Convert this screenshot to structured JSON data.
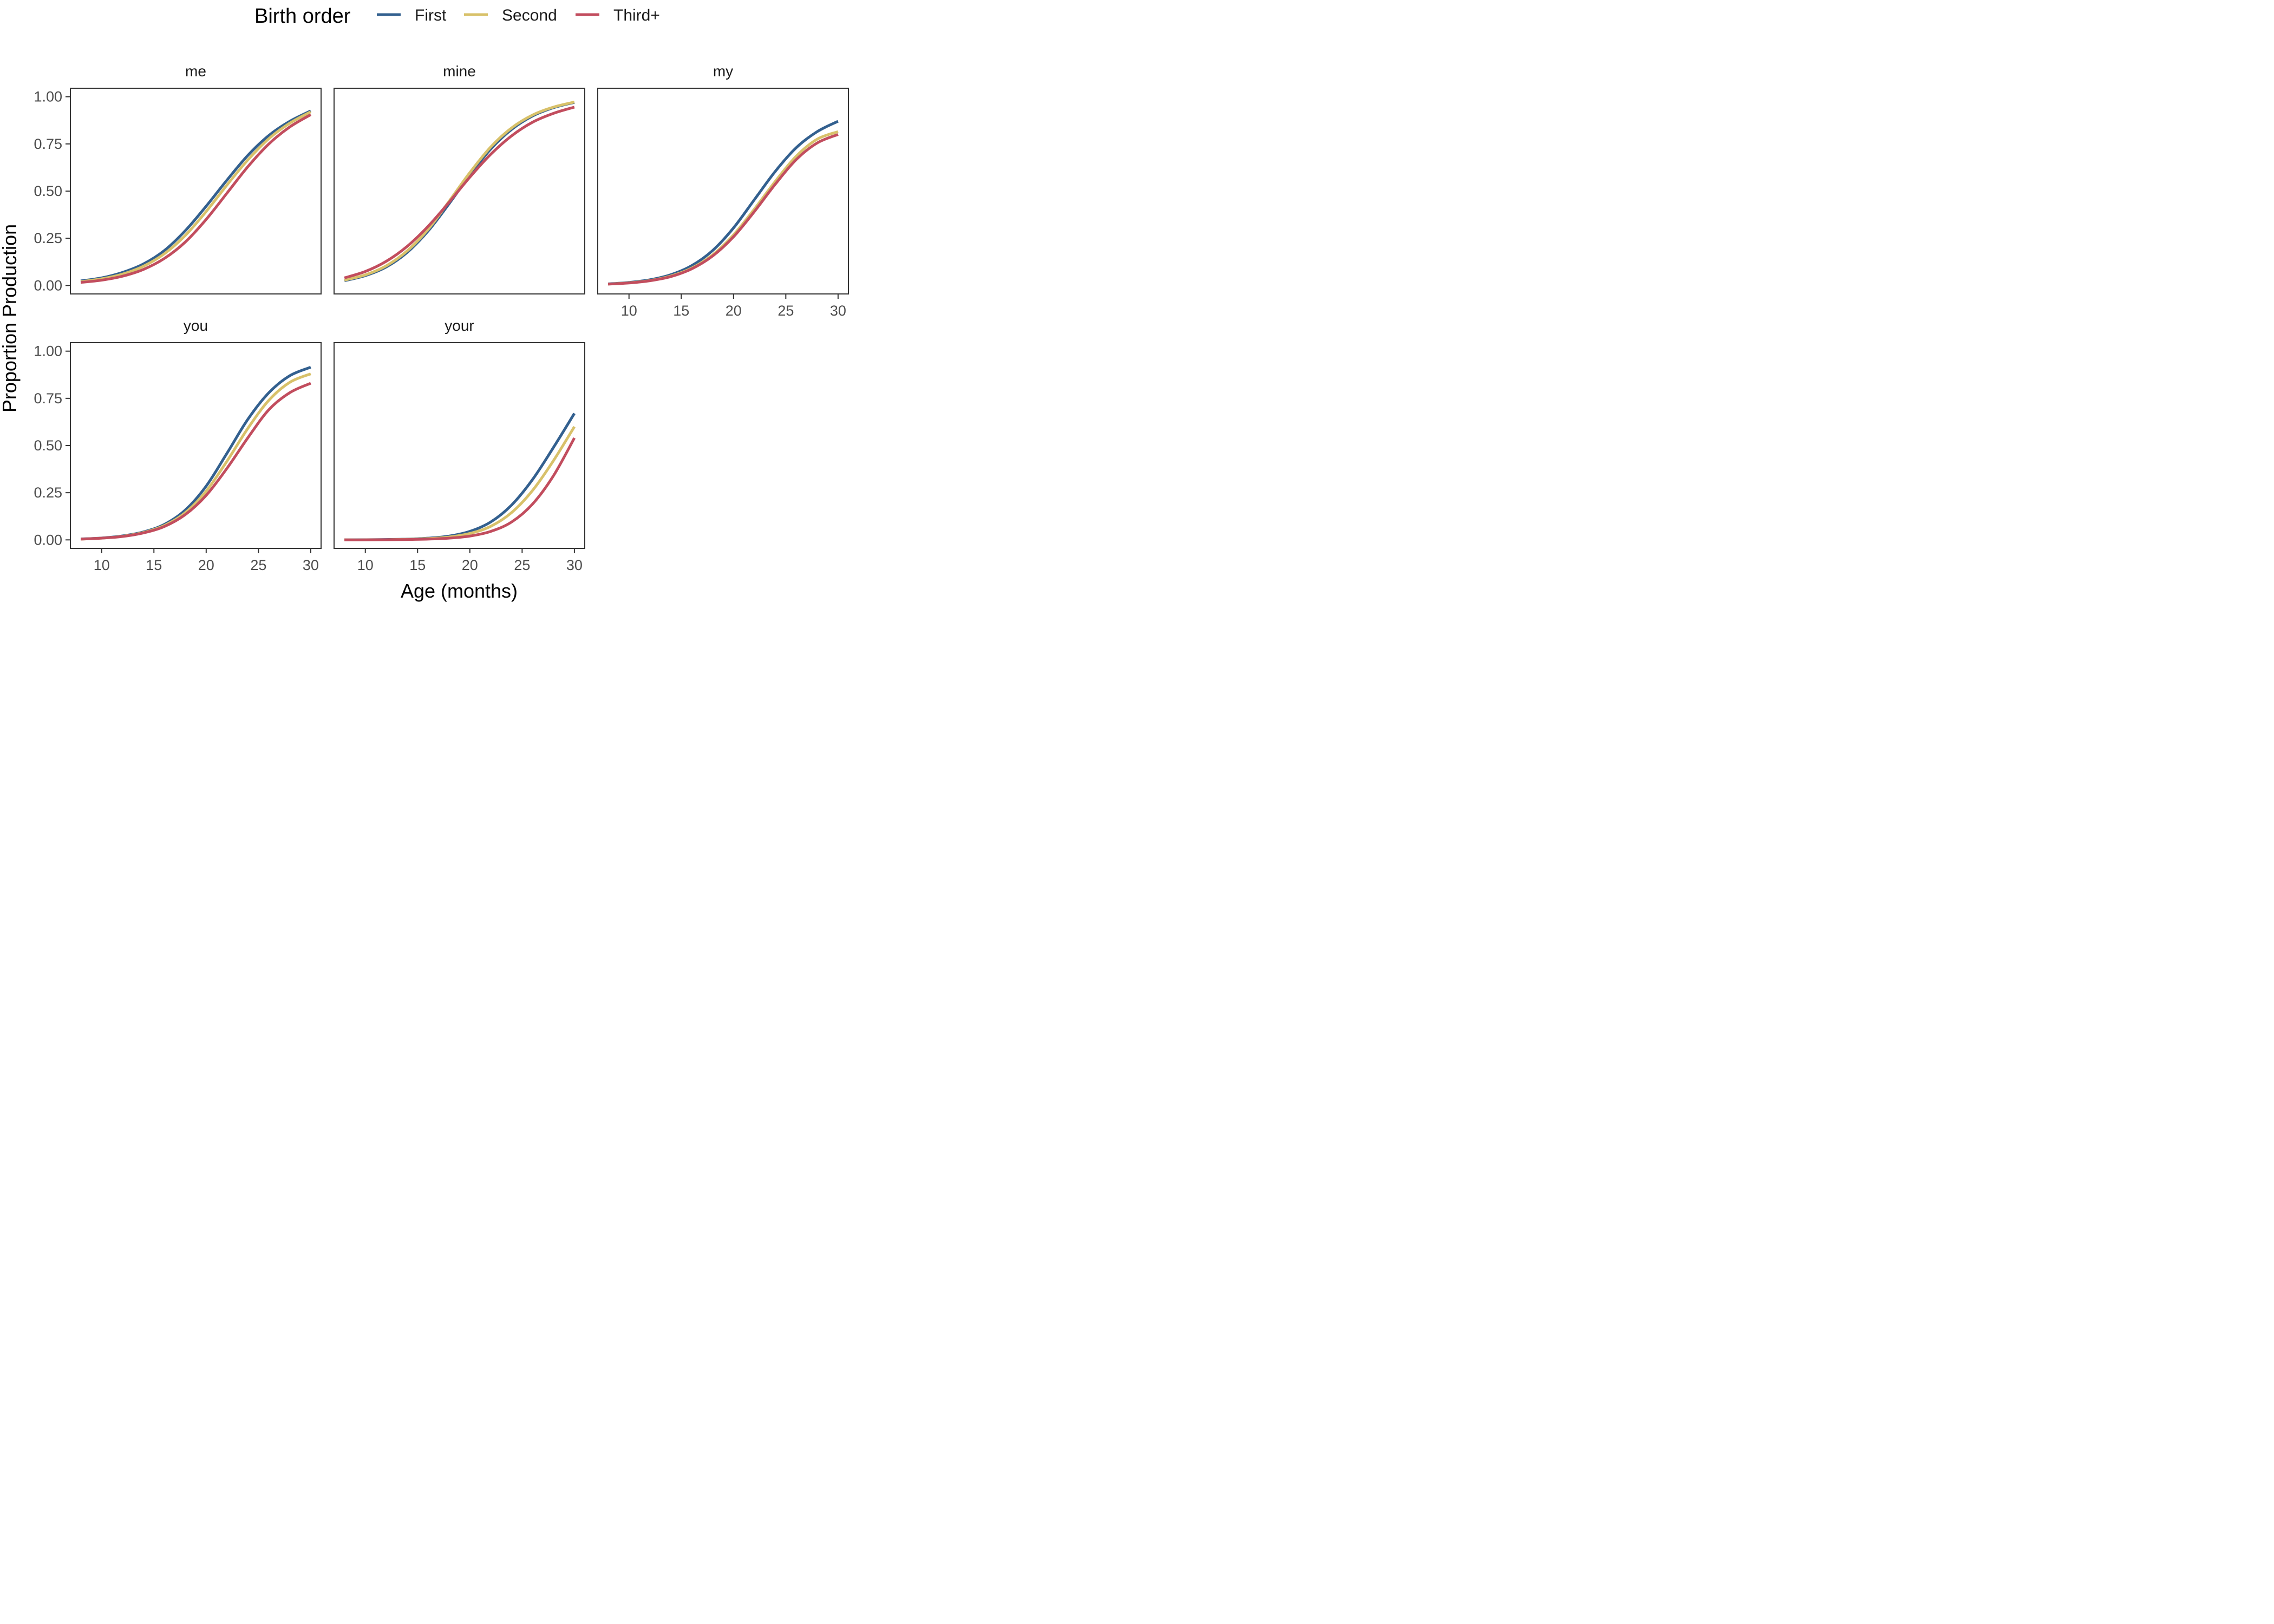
{
  "chart_data": {
    "type": "line",
    "legend": {
      "title": "Birth order",
      "placement": "top"
    },
    "xlabel": "Age (months)",
    "ylabel": "Proportion Production",
    "xlim": [
      8,
      30
    ],
    "ylim": [
      0,
      1
    ],
    "x_ticks": [
      10,
      15,
      20,
      25,
      30
    ],
    "y_ticks": [
      "0.00",
      "0.25",
      "0.50",
      "0.75",
      "1.00"
    ],
    "grid": false,
    "colors": {
      "First": "#33608f",
      "Second": "#d8c16a",
      "Third+": "#c24d5e"
    },
    "series_names": [
      "First",
      "Second",
      "Third+"
    ],
    "x": [
      8,
      10,
      12,
      14,
      16,
      18,
      20,
      22,
      24,
      26,
      28,
      30
    ],
    "panels": [
      {
        "title": "me",
        "series": [
          {
            "name": "First",
            "values": [
              0.024,
              0.04,
              0.069,
              0.114,
              0.185,
              0.29,
              0.42,
              0.559,
              0.69,
              0.795,
              0.87,
              0.925
            ]
          },
          {
            "name": "Second",
            "values": [
              0.02,
              0.035,
              0.06,
              0.102,
              0.168,
              0.265,
              0.392,
              0.533,
              0.666,
              0.778,
              0.86,
              0.92
            ]
          },
          {
            "name": "Third+",
            "values": [
              0.016,
              0.028,
              0.049,
              0.085,
              0.143,
              0.23,
              0.35,
              0.49,
              0.63,
              0.75,
              0.84,
              0.905
            ]
          }
        ]
      },
      {
        "title": "mine",
        "series": [
          {
            "name": "First",
            "values": [
              0.025,
              0.052,
              0.098,
              0.175,
              0.288,
              0.432,
              0.585,
              0.723,
              0.827,
              0.898,
              0.942,
              0.97
            ]
          },
          {
            "name": "Second",
            "values": [
              0.028,
              0.056,
              0.104,
              0.183,
              0.297,
              0.445,
              0.598,
              0.734,
              0.835,
              0.903,
              0.945,
              0.972
            ]
          },
          {
            "name": "Third+",
            "values": [
              0.04,
              0.074,
              0.128,
              0.207,
              0.313,
              0.44,
              0.574,
              0.695,
              0.793,
              0.865,
              0.912,
              0.945
            ]
          }
        ]
      },
      {
        "title": "my",
        "series": [
          {
            "name": "First",
            "values": [
              0.008,
              0.016,
              0.03,
              0.057,
              0.105,
              0.185,
              0.305,
              0.455,
              0.605,
              0.73,
              0.815,
              0.87
            ]
          },
          {
            "name": "Second",
            "values": [
              0.007,
              0.014,
              0.026,
              0.05,
              0.092,
              0.162,
              0.268,
              0.405,
              0.552,
              0.685,
              0.775,
              0.815
            ]
          },
          {
            "name": "Third+",
            "values": [
              0.007,
              0.013,
              0.025,
              0.047,
              0.088,
              0.156,
              0.258,
              0.392,
              0.537,
              0.667,
              0.755,
              0.8
            ]
          }
        ]
      },
      {
        "title": "you",
        "series": [
          {
            "name": "First",
            "values": [
              0.005,
              0.01,
              0.021,
              0.042,
              0.082,
              0.158,
              0.285,
              0.46,
              0.64,
              0.78,
              0.87,
              0.915
            ]
          },
          {
            "name": "Second",
            "values": [
              0.004,
              0.009,
              0.019,
              0.039,
              0.076,
              0.144,
              0.258,
              0.418,
              0.592,
              0.74,
              0.835,
              0.88
            ]
          },
          {
            "name": "Third+",
            "values": [
              0.004,
              0.009,
              0.018,
              0.037,
              0.071,
              0.134,
              0.236,
              0.38,
              0.542,
              0.69,
              0.78,
              0.83
            ]
          }
        ]
      },
      {
        "title": "your",
        "series": [
          {
            "name": "First",
            "values": [
              0.0,
              0.001,
              0.002,
              0.004,
              0.009,
              0.02,
              0.045,
              0.095,
              0.185,
              0.32,
              0.49,
              0.67
            ]
          },
          {
            "name": "Second",
            "values": [
              0.0,
              0.0,
              0.001,
              0.003,
              0.007,
              0.015,
              0.034,
              0.072,
              0.145,
              0.262,
              0.42,
              0.6
            ]
          },
          {
            "name": "Third+",
            "values": [
              0.0,
              0.0,
              0.001,
              0.002,
              0.004,
              0.009,
              0.02,
              0.045,
              0.095,
              0.19,
              0.34,
              0.54
            ]
          }
        ]
      }
    ]
  }
}
